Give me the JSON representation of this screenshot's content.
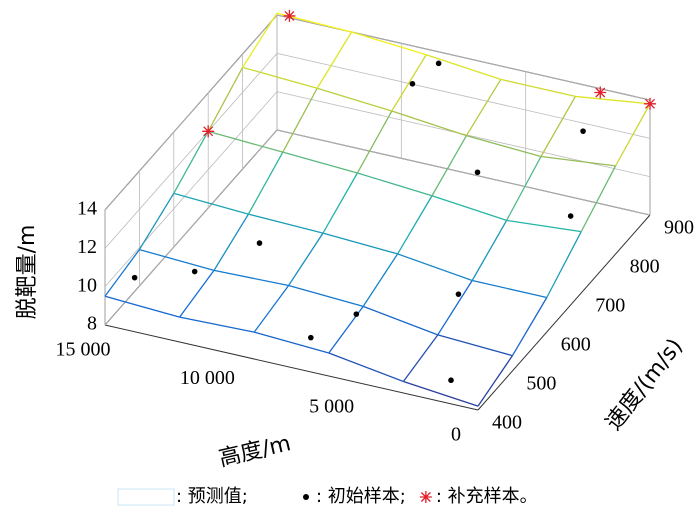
{
  "chart_data": {
    "type": "surface3d",
    "xlabel": "高度/m",
    "ylabel": "速度/(m/s)",
    "zlabel": "脱靶量/m",
    "xlim": [
      0,
      15000
    ],
    "ylim": [
      400,
      900
    ],
    "zlim": [
      8,
      14
    ],
    "xticks": [
      0,
      {
        "value": 5000,
        "label": "5 000"
      },
      {
        "value": 10000,
        "label": "10 000"
      },
      {
        "value": 15000,
        "label": "15 000"
      }
    ],
    "yticks": [
      400,
      500,
      600,
      700,
      800,
      900
    ],
    "zticks": [
      8,
      10,
      12,
      14
    ],
    "grid": true,
    "colormap": "parula",
    "surface": {
      "name": ": 预测值;",
      "color": "#c8e4f4",
      "x": [
        0,
        3000,
        6000,
        9000,
        12000,
        15000
      ],
      "y": [
        400,
        500,
        600,
        700,
        800,
        900
      ],
      "z": [
        [
          8.2,
          8.6,
          9.2,
          9.4,
          9.3,
          9.5
        ],
        [
          8.8,
          9.0,
          9.6,
          9.8,
          9.7,
          9.9
        ],
        [
          9.8,
          9.8,
          10.3,
          10.5,
          10.6,
          10.8
        ],
        [
          11.2,
          10.9,
          11.3,
          11.6,
          11.8,
          12.0
        ],
        [
          12.6,
          12.2,
          12.4,
          12.8,
          13.1,
          13.3
        ],
        [
          13.8,
          13.3,
          13.3,
          13.7,
          14.0,
          14.1
        ]
      ]
    },
    "series": [
      {
        "name": ": 初始样本;",
        "marker": "dot",
        "color": "#000000",
        "x": [
          14500,
          12500,
          7000,
          6000,
          3000,
          1500,
          700,
          5000,
          2000,
          9000,
          8500,
          11000
        ],
        "y": [
          450,
          480,
          420,
          480,
          560,
          430,
          720,
          760,
          850,
          860,
          900,
          560
        ],
        "z": [
          9.6,
          9.9,
          9.3,
          9.6,
          9.9,
          8.5,
          11.4,
          11.6,
          12.8,
          13.0,
          13.4,
          10.2
        ]
      },
      {
        "name": ": 补充样本。",
        "marker": "star",
        "color": "#e0202a",
        "x": [
          15000,
          14500,
          2000,
          0
        ],
        "y": [
          700,
          900,
          900,
          900
        ],
        "z": [
          12.0,
          14.1,
          13.8,
          13.8
        ]
      }
    ]
  }
}
